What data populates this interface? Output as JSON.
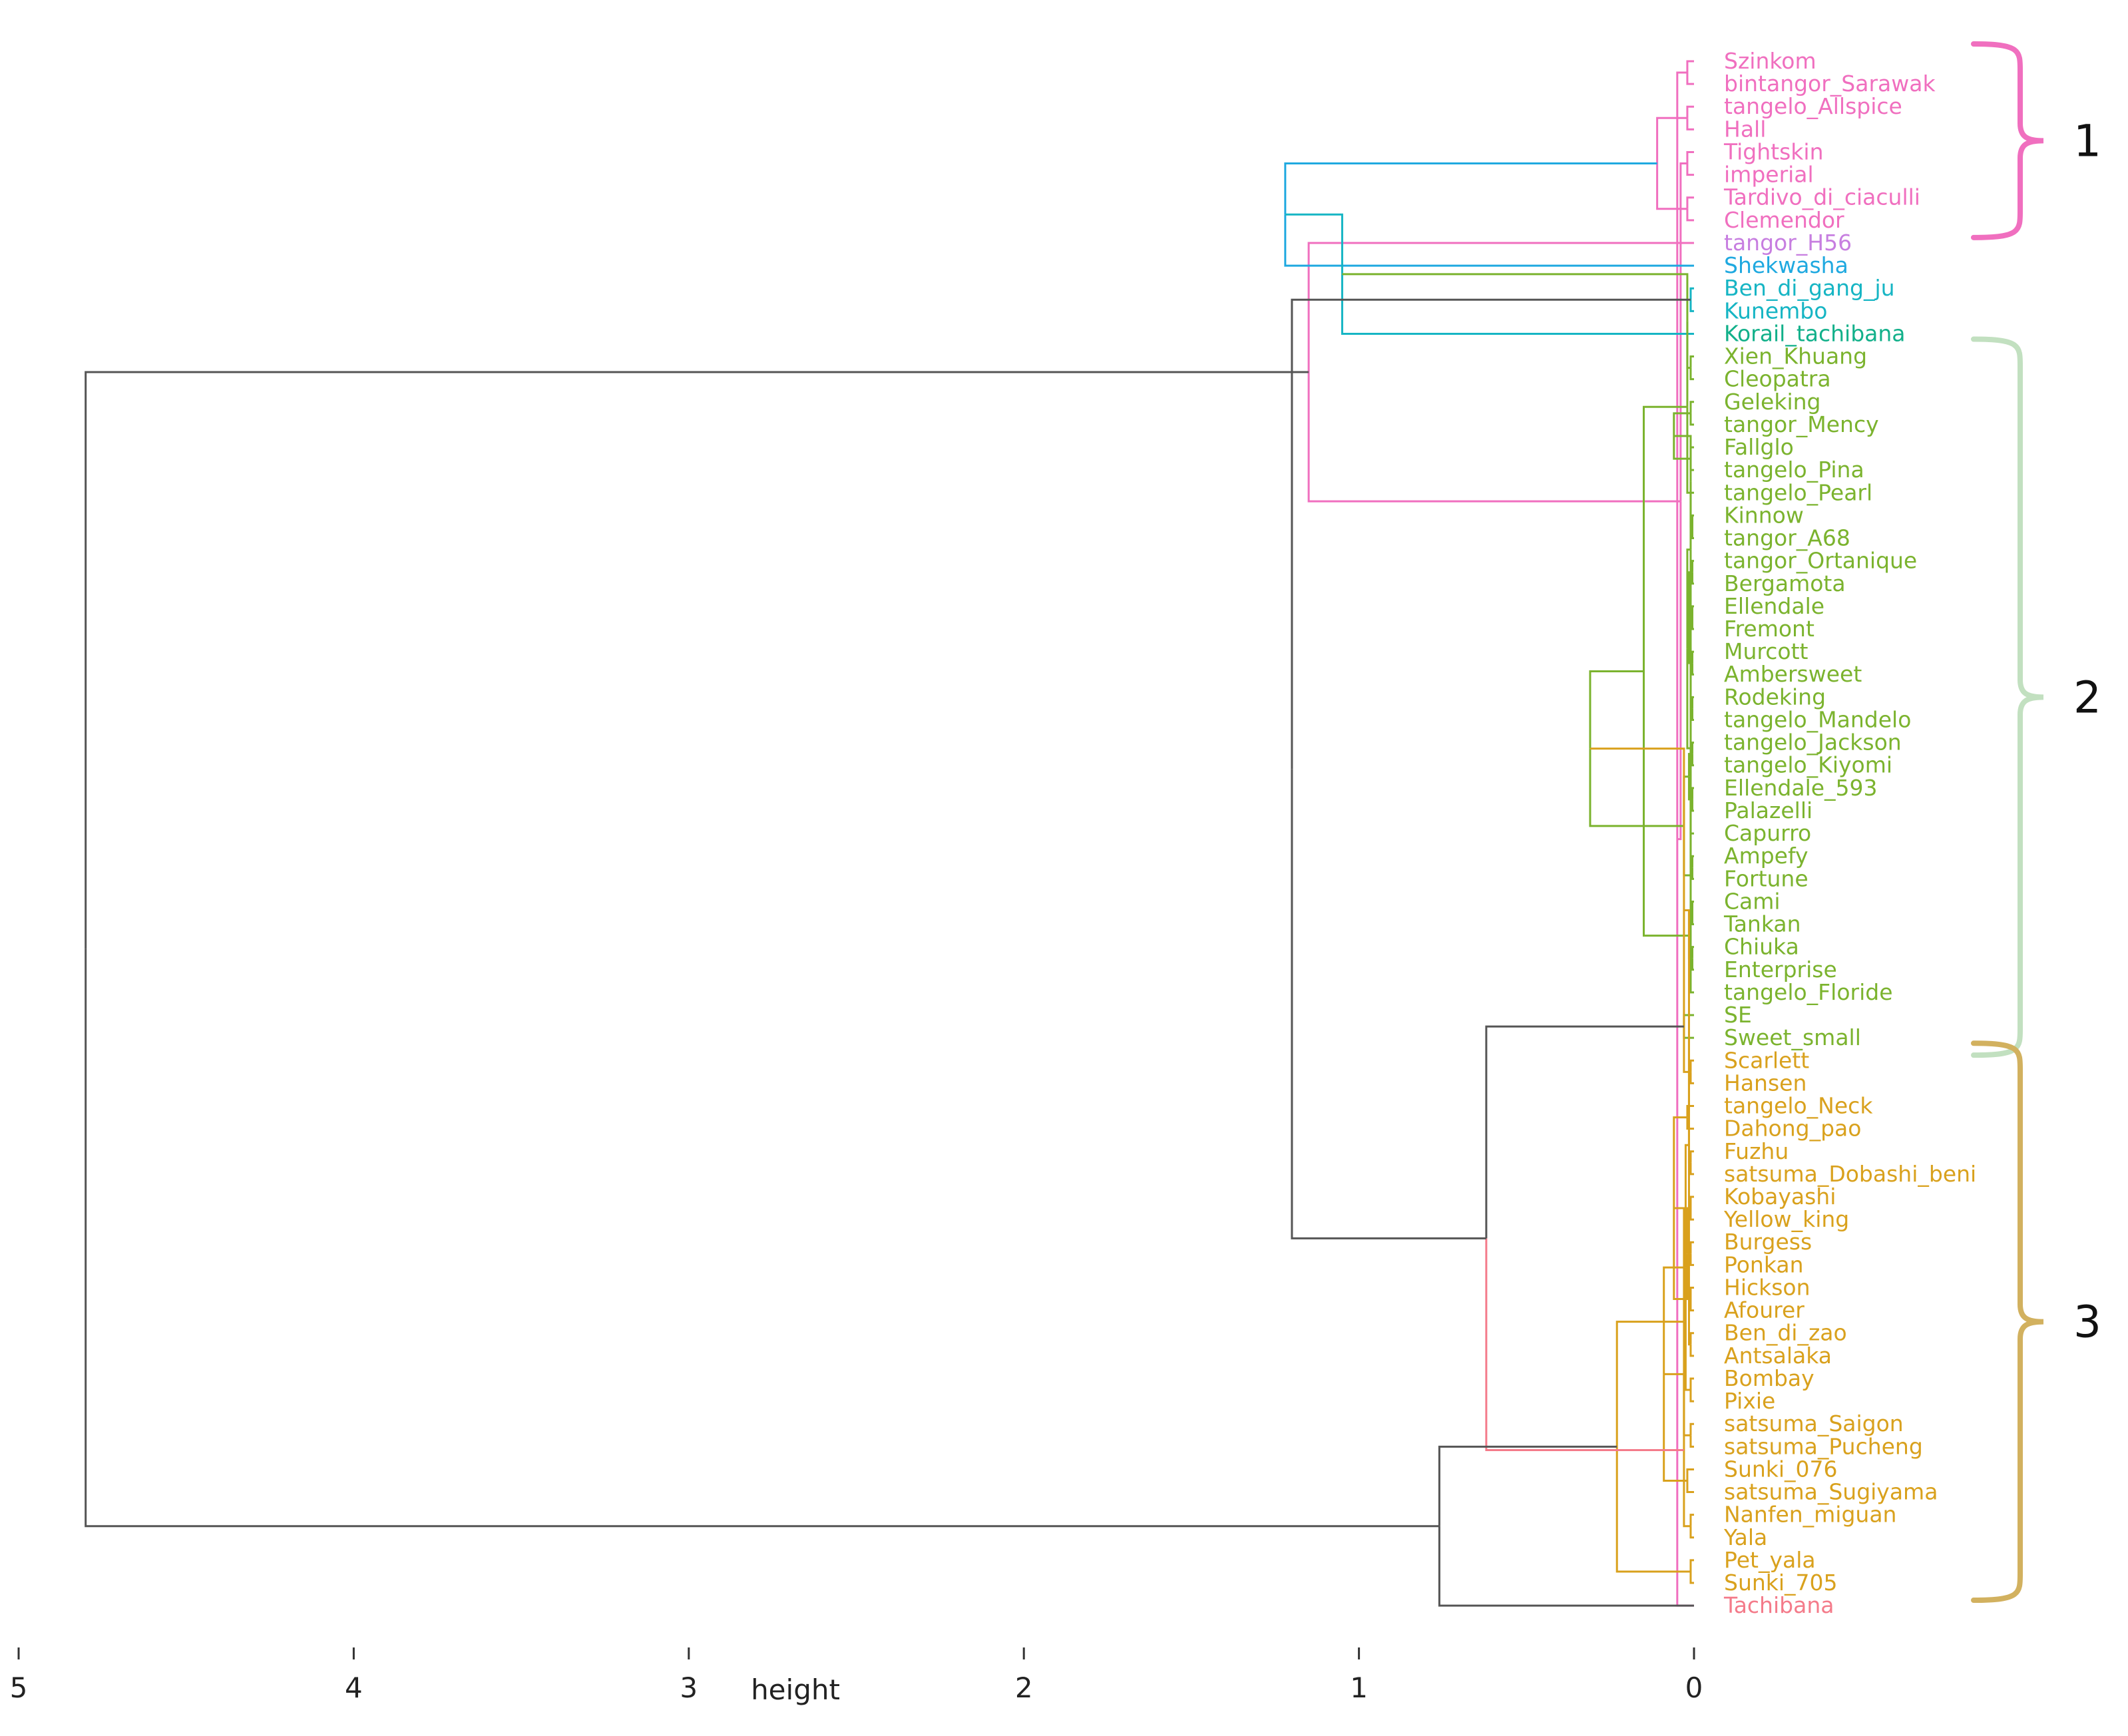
{
  "chart_data": {
    "type": "dendrogram",
    "title": "",
    "xlabel": "height",
    "ylabel": "",
    "xlim": [
      5,
      0
    ],
    "x_ticks": [
      "5",
      "4",
      "3",
      "2",
      "1",
      "0"
    ],
    "x_tick_values": [
      5,
      4,
      3,
      2,
      1,
      0
    ],
    "leaves": [
      {
        "label": "Szinkom",
        "color": "#f06fbf"
      },
      {
        "label": "bintangor_Sarawak",
        "color": "#f06fbf"
      },
      {
        "label": "tangelo_Allspice",
        "color": "#f06fbf"
      },
      {
        "label": "Hall",
        "color": "#f06fbf"
      },
      {
        "label": "Tightskin",
        "color": "#f06fbf"
      },
      {
        "label": "imperial",
        "color": "#f06fbf"
      },
      {
        "label": "Tardivo_di_ciaculli",
        "color": "#f06fbf"
      },
      {
        "label": "Clemendor",
        "color": "#f06fbf"
      },
      {
        "label": "tangor_H56",
        "color": "#c77ee0"
      },
      {
        "label": "Shekwasha",
        "color": "#1fa9e0"
      },
      {
        "label": "Ben_di_gang_ju",
        "color": "#16b5c4"
      },
      {
        "label": "Kunembo",
        "color": "#16b5c4"
      },
      {
        "label": "Korail_tachibana",
        "color": "#12b08a"
      },
      {
        "label": "Xien_Khuang",
        "color": "#7bb32e"
      },
      {
        "label": "Cleopatra",
        "color": "#7bb32e"
      },
      {
        "label": "Geleking",
        "color": "#7bb32e"
      },
      {
        "label": "tangor_Mency",
        "color": "#7bb32e"
      },
      {
        "label": "Fallglo",
        "color": "#7bb32e"
      },
      {
        "label": "tangelo_Pina",
        "color": "#7bb32e"
      },
      {
        "label": "tangelo_Pearl",
        "color": "#7bb32e"
      },
      {
        "label": "Kinnow",
        "color": "#7bb32e"
      },
      {
        "label": "tangor_A68",
        "color": "#7bb32e"
      },
      {
        "label": "tangor_Ortanique",
        "color": "#7bb32e"
      },
      {
        "label": "Bergamota",
        "color": "#7bb32e"
      },
      {
        "label": "Ellendale",
        "color": "#7bb32e"
      },
      {
        "label": "Fremont",
        "color": "#7bb32e"
      },
      {
        "label": "Murcott",
        "color": "#7bb32e"
      },
      {
        "label": "Ambersweet",
        "color": "#7bb32e"
      },
      {
        "label": "Rodeking",
        "color": "#7bb32e"
      },
      {
        "label": "tangelo_Mandelo",
        "color": "#7bb32e"
      },
      {
        "label": "tangelo_Jackson",
        "color": "#7bb32e"
      },
      {
        "label": "tangelo_Kiyomi",
        "color": "#7bb32e"
      },
      {
        "label": "Ellendale_593",
        "color": "#7bb32e"
      },
      {
        "label": "Palazelli",
        "color": "#7bb32e"
      },
      {
        "label": "Capurro",
        "color": "#7bb32e"
      },
      {
        "label": "Ampefy",
        "color": "#7bb32e"
      },
      {
        "label": "Fortune",
        "color": "#7bb32e"
      },
      {
        "label": "Cami",
        "color": "#7bb32e"
      },
      {
        "label": "Tankan",
        "color": "#7bb32e"
      },
      {
        "label": "Chiuka",
        "color": "#7bb32e"
      },
      {
        "label": "Enterprise",
        "color": "#7bb32e"
      },
      {
        "label": "tangelo_Floride",
        "color": "#7bb32e"
      },
      {
        "label": "SE",
        "color": "#7bb32e"
      },
      {
        "label": "Sweet_small",
        "color": "#7bb32e"
      },
      {
        "label": "Scarlett",
        "color": "#d9a11d"
      },
      {
        "label": "Hansen",
        "color": "#d9a11d"
      },
      {
        "label": "tangelo_Neck",
        "color": "#d9a11d"
      },
      {
        "label": "Dahong_pao",
        "color": "#d9a11d"
      },
      {
        "label": "Fuzhu",
        "color": "#d9a11d"
      },
      {
        "label": "satsuma_Dobashi_beni",
        "color": "#d9a11d"
      },
      {
        "label": "Kobayashi",
        "color": "#d9a11d"
      },
      {
        "label": "Yellow_king",
        "color": "#d9a11d"
      },
      {
        "label": "Burgess",
        "color": "#d9a11d"
      },
      {
        "label": "Ponkan",
        "color": "#d9a11d"
      },
      {
        "label": "Hickson",
        "color": "#d9a11d"
      },
      {
        "label": "Afourer",
        "color": "#d9a11d"
      },
      {
        "label": "Ben_di_zao",
        "color": "#d9a11d"
      },
      {
        "label": "Antsalaka",
        "color": "#d9a11d"
      },
      {
        "label": "Bombay",
        "color": "#d9a11d"
      },
      {
        "label": "Pixie",
        "color": "#d9a11d"
      },
      {
        "label": "satsuma_Saigon",
        "color": "#d9a11d"
      },
      {
        "label": "satsuma_Pucheng",
        "color": "#d9a11d"
      },
      {
        "label": "Sunki_076",
        "color": "#d9a11d"
      },
      {
        "label": "satsuma_Sugiyama",
        "color": "#d9a11d"
      },
      {
        "label": "Nanfen_miguan",
        "color": "#d9a11d"
      },
      {
        "label": "Yala",
        "color": "#d9a11d"
      },
      {
        "label": "Pet_yala",
        "color": "#d9a11d"
      },
      {
        "label": "Sunki_705",
        "color": "#d9a11d"
      },
      {
        "label": "Tachibana",
        "color": "#f47b8a"
      }
    ],
    "merges": [
      {
        "a": 0,
        "b": 1,
        "h": 0.02,
        "color": "#f06fbf"
      },
      {
        "a": 2,
        "b": 3,
        "h": 0.02,
        "color": "#f06fbf"
      },
      {
        "a": 68,
        "b": 69,
        "h": 0.05,
        "color": "#f06fbf"
      },
      {
        "a": 4,
        "b": 5,
        "h": 0.02,
        "color": "#f06fbf"
      },
      {
        "a": 6,
        "b": 7,
        "h": 0.02,
        "color": "#f06fbf"
      },
      {
        "a": 71,
        "b": 72,
        "h": 0.04,
        "color": "#f06fbf"
      },
      {
        "a": 70,
        "b": 73,
        "h": 0.11,
        "color": "#f06fbf"
      },
      {
        "a": 74,
        "b": 8,
        "h": 1.15,
        "color": "#f06fbf"
      },
      {
        "a": 75,
        "b": 9,
        "h": 1.22,
        "color": "#1fa9e0"
      },
      {
        "a": 10,
        "b": 11,
        "h": 0.01,
        "color": "#16b5c4"
      },
      {
        "a": 77,
        "b": 12,
        "h": 1.05,
        "color": "#16b5c4"
      },
      {
        "a": 13,
        "b": 14,
        "h": 0.01,
        "color": "#7bb32e"
      },
      {
        "a": 15,
        "b": 16,
        "h": 0.01,
        "color": "#7bb32e"
      },
      {
        "a": 79,
        "b": 80,
        "h": 0.02,
        "color": "#7bb32e"
      },
      {
        "a": 17,
        "b": 18,
        "h": 0.01,
        "color": "#7bb32e"
      },
      {
        "a": 82,
        "b": 19,
        "h": 0.02,
        "color": "#7bb32e"
      },
      {
        "a": 81,
        "b": 83,
        "h": 0.06,
        "color": "#7bb32e"
      },
      {
        "a": 20,
        "b": 21,
        "h": 0.005,
        "color": "#7bb32e"
      },
      {
        "a": 22,
        "b": 23,
        "h": 0.005,
        "color": "#7bb32e"
      },
      {
        "a": 85,
        "b": 86,
        "h": 0.01,
        "color": "#7bb32e"
      },
      {
        "a": 24,
        "b": 25,
        "h": 0.005,
        "color": "#7bb32e"
      },
      {
        "a": 26,
        "b": 27,
        "h": 0.005,
        "color": "#7bb32e"
      },
      {
        "a": 88,
        "b": 89,
        "h": 0.01,
        "color": "#7bb32e"
      },
      {
        "a": 87,
        "b": 90,
        "h": 0.015,
        "color": "#7bb32e"
      },
      {
        "a": 28,
        "b": 29,
        "h": 0.005,
        "color": "#7bb32e"
      },
      {
        "a": 30,
        "b": 31,
        "h": 0.005,
        "color": "#7bb32e"
      },
      {
        "a": 92,
        "b": 93,
        "h": 0.01,
        "color": "#7bb32e"
      },
      {
        "a": 32,
        "b": 33,
        "h": 0.005,
        "color": "#7bb32e"
      },
      {
        "a": 95,
        "b": 34,
        "h": 0.01,
        "color": "#7bb32e"
      },
      {
        "a": 94,
        "b": 96,
        "h": 0.015,
        "color": "#7bb32e"
      },
      {
        "a": 91,
        "b": 97,
        "h": 0.02,
        "color": "#7bb32e"
      },
      {
        "a": 35,
        "b": 36,
        "h": 0.005,
        "color": "#7bb32e"
      },
      {
        "a": 37,
        "b": 38,
        "h": 0.005,
        "color": "#7bb32e"
      },
      {
        "a": 99,
        "b": 100,
        "h": 0.01,
        "color": "#7bb32e"
      },
      {
        "a": 39,
        "b": 40,
        "h": 0.005,
        "color": "#7bb32e"
      },
      {
        "a": 102,
        "b": 41,
        "h": 0.01,
        "color": "#7bb32e"
      },
      {
        "a": 101,
        "b": 103,
        "h": 0.015,
        "color": "#7bb32e"
      },
      {
        "a": 98,
        "b": 104,
        "h": 0.03,
        "color": "#7bb32e"
      },
      {
        "a": 84,
        "b": 105,
        "h": 0.15,
        "color": "#7bb32e"
      },
      {
        "a": 42,
        "b": 43,
        "h": 0.03,
        "color": "#7bb32e"
      },
      {
        "a": 106,
        "b": 107,
        "h": 0.31,
        "color": "#7bb32e"
      },
      {
        "a": 44,
        "b": 45,
        "h": 0.01,
        "color": "#d9a11d"
      },
      {
        "a": 46,
        "b": 47,
        "h": 0.02,
        "color": "#d9a11d"
      },
      {
        "a": 109,
        "b": 110,
        "h": 0.03,
        "color": "#d9a11d"
      },
      {
        "a": 48,
        "b": 49,
        "h": 0.01,
        "color": "#d9a11d"
      },
      {
        "a": 50,
        "b": 51,
        "h": 0.01,
        "color": "#d9a11d"
      },
      {
        "a": 112,
        "b": 113,
        "h": 0.015,
        "color": "#d9a11d"
      },
      {
        "a": 52,
        "b": 53,
        "h": 0.01,
        "color": "#d9a11d"
      },
      {
        "a": 54,
        "b": 55,
        "h": 0.01,
        "color": "#d9a11d"
      },
      {
        "a": 115,
        "b": 116,
        "h": 0.015,
        "color": "#d9a11d"
      },
      {
        "a": 114,
        "b": 117,
        "h": 0.02,
        "color": "#d9a11d"
      },
      {
        "a": 56,
        "b": 57,
        "h": 0.01,
        "color": "#d9a11d"
      },
      {
        "a": 58,
        "b": 59,
        "h": 0.01,
        "color": "#d9a11d"
      },
      {
        "a": 119,
        "b": 120,
        "h": 0.015,
        "color": "#d9a11d"
      },
      {
        "a": 118,
        "b": 121,
        "h": 0.025,
        "color": "#d9a11d"
      },
      {
        "a": 111,
        "b": 122,
        "h": 0.06,
        "color": "#d9a11d"
      },
      {
        "a": 60,
        "b": 61,
        "h": 0.01,
        "color": "#d9a11d"
      },
      {
        "a": 62,
        "b": 63,
        "h": 0.02,
        "color": "#d9a11d"
      },
      {
        "a": 124,
        "b": 125,
        "h": 0.03,
        "color": "#d9a11d"
      },
      {
        "a": 123,
        "b": 126,
        "h": 0.09,
        "color": "#d9a11d"
      },
      {
        "a": 64,
        "b": 65,
        "h": 0.01,
        "color": "#d9a11d"
      },
      {
        "a": 66,
        "b": 67,
        "h": 0.01,
        "color": "#d9a11d"
      },
      {
        "a": 128,
        "b": 129,
        "h": 0.03,
        "color": "#d9a11d"
      },
      {
        "a": 127,
        "b": 130,
        "h": 0.23,
        "color": "#d9a11d"
      },
      {
        "a": 108,
        "b": 131,
        "h": 0.62,
        "color": "#555555"
      },
      {
        "a": 132,
        "b": 68,
        "h": 0.76,
        "color": "#555555"
      },
      {
        "a": 78,
        "b": 133,
        "h": 1.2,
        "color": "#555555"
      },
      {
        "a": 76,
        "b": 134,
        "h": 4.8,
        "color": "#555555"
      }
    ],
    "merge_segments": [
      {
        "merge": 64,
        "which": "b",
        "color": "#f47b8a"
      }
    ],
    "groups": [
      {
        "label": "1",
        "from": 0,
        "to": 7,
        "color": "#f06fbf"
      },
      {
        "label": "2",
        "from": 13,
        "to": 43,
        "color": "#c2e0c0"
      },
      {
        "label": "3",
        "from": 44,
        "to": 67,
        "color": "#d2b15f"
      }
    ]
  }
}
